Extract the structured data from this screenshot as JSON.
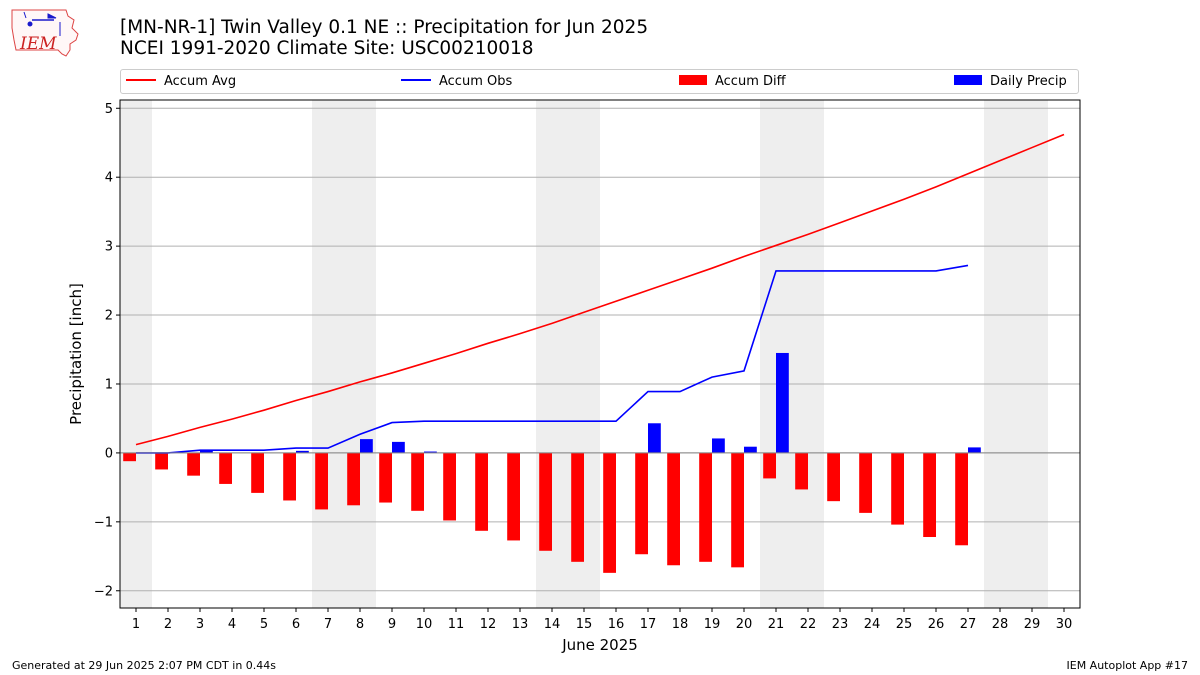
{
  "header": {
    "title_line1": "[MN-NR-1] Twin Valley 0.1 NE :: Precipitation for Jun 2025",
    "title_line2": "NCEI 1991-2020 Climate Site: USC00210018",
    "logo_text": "IEM"
  },
  "legend": {
    "items": [
      {
        "label": "Accum Avg",
        "color": "#ff0000",
        "kind": "line"
      },
      {
        "label": "Accum Obs",
        "color": "#0000ff",
        "kind": "line"
      },
      {
        "label": "Accum Diff",
        "color": "#ff0000",
        "kind": "bar"
      },
      {
        "label": "Daily Precip",
        "color": "#0000ff",
        "kind": "bar"
      }
    ]
  },
  "footer": {
    "left": "Generated at 29 Jun 2025 2:07 PM CDT in 0.44s",
    "right": "IEM Autoplot App #17"
  },
  "chart_data": {
    "type": "bar",
    "xlabel": "June 2025",
    "ylabel": "Precipitation [inch]",
    "xlim": [
      0.5,
      30.5
    ],
    "ylim": [
      -2.25,
      5.12
    ],
    "yticks": [
      -2,
      -1,
      0,
      1,
      2,
      3,
      4,
      5
    ],
    "ytick_labels": [
      "−2",
      "−1",
      "0",
      "1",
      "2",
      "3",
      "4",
      "5"
    ],
    "categories": [
      1,
      2,
      3,
      4,
      5,
      6,
      7,
      8,
      9,
      10,
      11,
      12,
      13,
      14,
      15,
      16,
      17,
      18,
      19,
      20,
      21,
      22,
      23,
      24,
      25,
      26,
      27,
      28,
      29,
      30
    ],
    "weekend_shaded_days": [
      1,
      7,
      8,
      14,
      15,
      21,
      22,
      28,
      29
    ],
    "grid": "horizontal",
    "series": [
      {
        "name": "Accum Avg",
        "type": "line",
        "color": "#ff0000",
        "values": [
          0.12,
          0.24,
          0.37,
          0.49,
          0.62,
          0.76,
          0.89,
          1.03,
          1.16,
          1.3,
          1.44,
          1.59,
          1.73,
          1.88,
          2.04,
          2.2,
          2.36,
          2.52,
          2.68,
          2.85,
          3.01,
          3.17,
          3.34,
          3.51,
          3.68,
          3.86,
          4.05,
          4.24,
          4.43,
          4.62
        ]
      },
      {
        "name": "Accum Obs",
        "type": "line",
        "color": "#0000ff",
        "values": [
          0.0,
          0.0,
          0.04,
          0.04,
          0.04,
          0.07,
          0.07,
          0.27,
          0.44,
          0.46,
          0.46,
          0.46,
          0.46,
          0.46,
          0.46,
          0.46,
          0.89,
          0.89,
          1.1,
          1.19,
          2.64,
          2.64,
          2.64,
          2.64,
          2.64,
          2.64,
          2.72,
          null,
          null,
          null
        ]
      },
      {
        "name": "Accum Diff",
        "type": "bar",
        "color": "#ff0000",
        "values": [
          -0.12,
          -0.24,
          -0.33,
          -0.45,
          -0.58,
          -0.69,
          -0.82,
          -0.76,
          -0.72,
          -0.84,
          -0.98,
          -1.13,
          -1.27,
          -1.42,
          -1.58,
          -1.74,
          -1.47,
          -1.63,
          -1.58,
          -1.66,
          -0.37,
          -0.53,
          -0.7,
          -0.87,
          -1.04,
          -1.22,
          -1.34,
          null,
          null,
          null
        ]
      },
      {
        "name": "Daily Precip",
        "type": "bar",
        "color": "#0000ff",
        "values": [
          0,
          0,
          0.04,
          0,
          0,
          0.03,
          0,
          0.2,
          0.16,
          0.02,
          0,
          0,
          0,
          0,
          0,
          0,
          0.43,
          0,
          0.21,
          0.09,
          1.45,
          0,
          0,
          0,
          0,
          0,
          0.08,
          null,
          null,
          null
        ]
      }
    ]
  }
}
